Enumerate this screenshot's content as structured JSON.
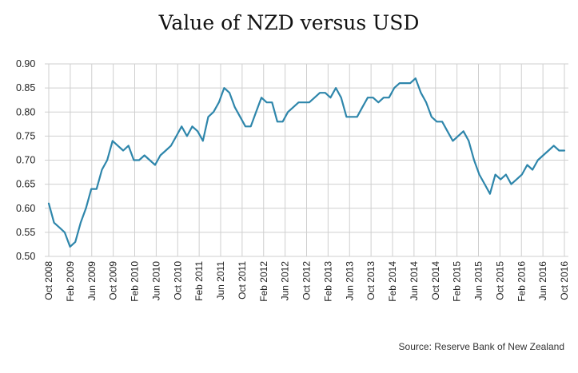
{
  "chart_data": {
    "type": "line",
    "title": "Value of NZD versus USD",
    "xlabel": "",
    "ylabel": "",
    "ylim": [
      0.5,
      0.9
    ],
    "yticks": [
      "0.90",
      "0.85",
      "0.80",
      "0.75",
      "0.70",
      "0.65",
      "0.60",
      "0.55",
      "0.50"
    ],
    "xticks": [
      "Oct 2008",
      "Feb 2009",
      "Jun 2009",
      "Oct 2009",
      "Feb 2010",
      "Jun 2010",
      "Oct 2010",
      "Feb 2011",
      "Jun 2011",
      "Oct 2011",
      "Feb 2012",
      "Jun 2012",
      "Oct 2012",
      "Feb 2013",
      "Jun 2013",
      "Oct 2013",
      "Feb 2014",
      "Jun 2014",
      "Oct 2014",
      "Feb 2015",
      "Jun 2015",
      "Oct 2015",
      "Feb 2016",
      "Jun 2016",
      "Oct 2016"
    ],
    "grid": true,
    "line_color": "#2e86ab",
    "series": [
      {
        "values": [
          0.61,
          0.57,
          0.56,
          0.55,
          0.52,
          0.53,
          0.57,
          0.6,
          0.64,
          0.64,
          0.68,
          0.7,
          0.74,
          0.73,
          0.72,
          0.73,
          0.7,
          0.7,
          0.71,
          0.7,
          0.69,
          0.71,
          0.72,
          0.73,
          0.75,
          0.77,
          0.75,
          0.77,
          0.76,
          0.74,
          0.79,
          0.8,
          0.82,
          0.85,
          0.84,
          0.81,
          0.79,
          0.77,
          0.77,
          0.8,
          0.83,
          0.82,
          0.82,
          0.78,
          0.78,
          0.8,
          0.81,
          0.82,
          0.82,
          0.82,
          0.83,
          0.84,
          0.84,
          0.83,
          0.85,
          0.83,
          0.79,
          0.79,
          0.79,
          0.81,
          0.83,
          0.83,
          0.82,
          0.83,
          0.83,
          0.85,
          0.86,
          0.86,
          0.86,
          0.87,
          0.84,
          0.82,
          0.79,
          0.78,
          0.78,
          0.76,
          0.74,
          0.75,
          0.76,
          0.74,
          0.7,
          0.67,
          0.65,
          0.63,
          0.67,
          0.66,
          0.67,
          0.65,
          0.66,
          0.67,
          0.69,
          0.68,
          0.7,
          0.71,
          0.72,
          0.73,
          0.72,
          0.72
        ]
      }
    ]
  },
  "source_note": "Source: Reserve Bank of New Zealand"
}
